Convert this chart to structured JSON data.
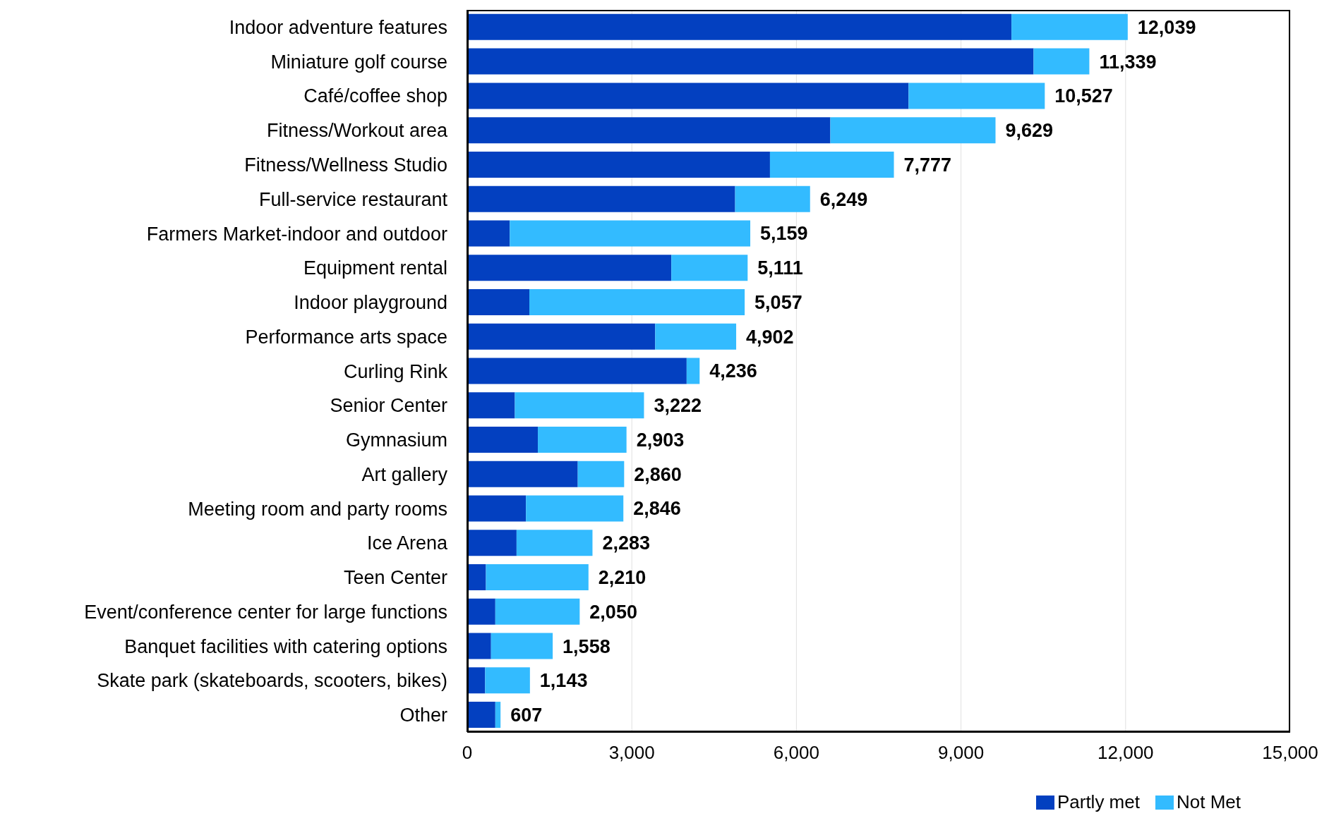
{
  "chart_data": {
    "type": "bar",
    "orientation": "horizontal",
    "stacked": true,
    "categories": [
      "Indoor adventure features",
      "Miniature golf course",
      "Café/coffee shop",
      "Fitness/Workout area",
      "Fitness/Wellness Studio",
      "Full-service restaurant",
      "Farmers Market-indoor and outdoor",
      "Equipment rental",
      "Indoor playground",
      "Performance arts space",
      "Curling Rink",
      "Senior Center",
      "Gymnasium",
      "Art gallery",
      "Meeting room and party rooms",
      "Ice Arena",
      "Teen Center",
      "Event/conference center for large functions",
      "Banquet facilities with catering options",
      "Skate park (skateboards, scooters, bikes)",
      "Other"
    ],
    "series": [
      {
        "name": "Partly met",
        "color": "#0340c0",
        "values": [
          9920,
          10323,
          8045,
          6619,
          5518,
          4883,
          775,
          3720,
          1132,
          3426,
          3999,
          868,
          1287,
          2015,
          1070,
          899,
          341,
          512,
          434,
          326,
          512
        ]
      },
      {
        "name": "Not Met",
        "color": "#33bbff",
        "values": [
          2119,
          1016,
          2482,
          3010,
          2259,
          1366,
          4384,
          1391,
          3925,
          1476,
          237,
          2354,
          1616,
          845,
          1776,
          1384,
          1869,
          1538,
          1124,
          817,
          95
        ]
      }
    ],
    "totals": [
      "12,039",
      "11,339",
      "10,527",
      "9,629",
      "7,777",
      "6,249",
      "5,159",
      "5,111",
      "5,057",
      "4,902",
      "4,236",
      "3,222",
      "2,903",
      "2,860",
      "2,846",
      "2,283",
      "2,210",
      "2,050",
      "1,558",
      "1,143",
      "607"
    ],
    "xlim": [
      0,
      15000
    ],
    "xticks": [
      0,
      {
        "value": 3000,
        "label": "3,000"
      },
      {
        "value": 6000,
        "label": "6,000"
      },
      {
        "value": 9000,
        "label": "9,000"
      },
      {
        "value": 12000,
        "label": "12,000"
      },
      {
        "value": 15000,
        "label": "15,000"
      }
    ],
    "grid": "x",
    "legend": "bottom right"
  }
}
